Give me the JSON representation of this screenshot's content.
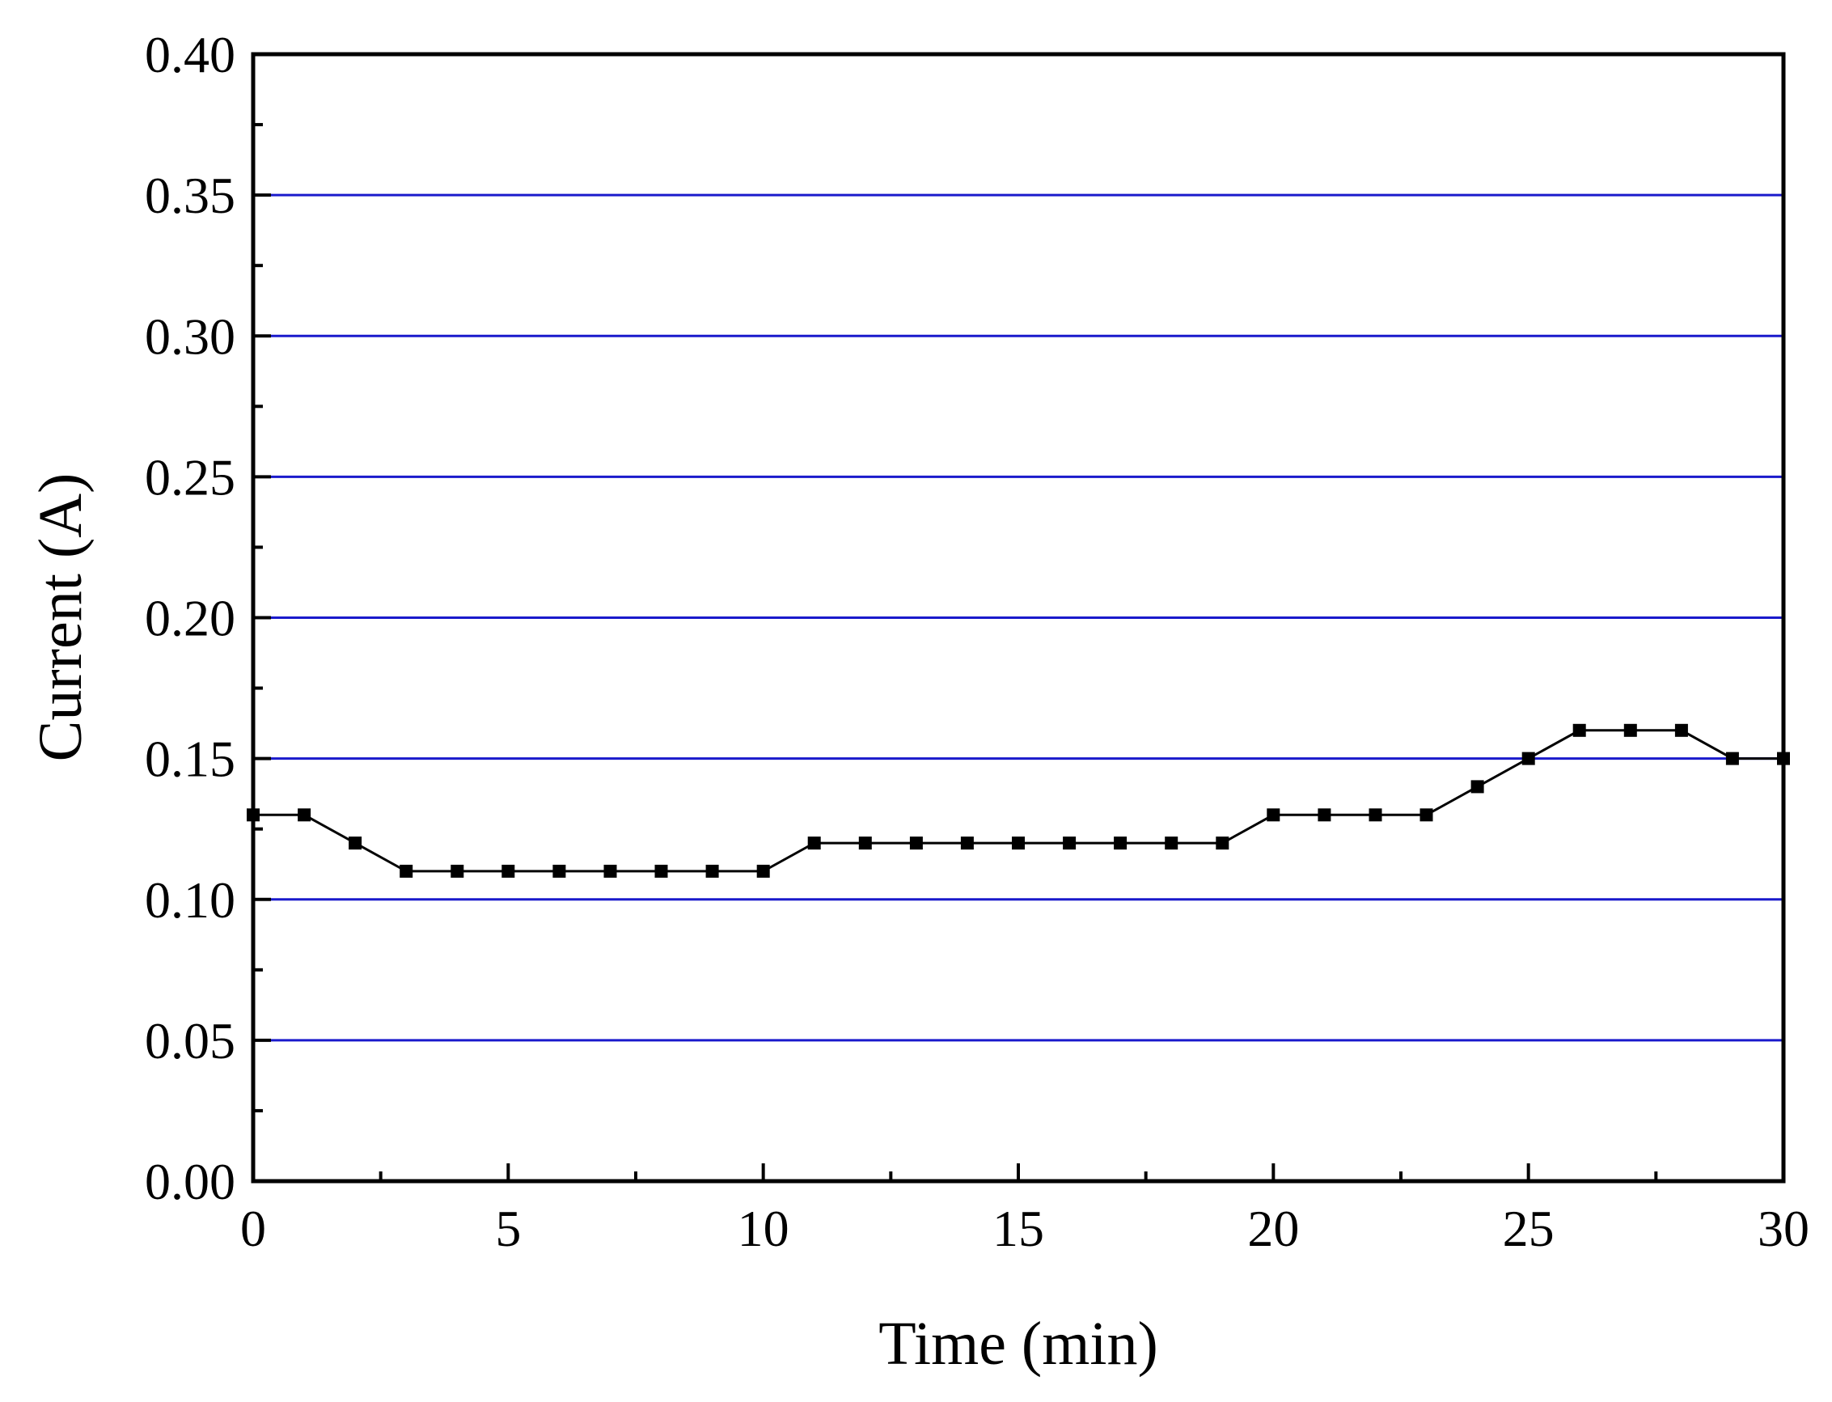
{
  "chart_data": {
    "type": "line",
    "title": "",
    "xlabel": "Time (min)",
    "ylabel": "Current (A)",
    "xlim": [
      0,
      30
    ],
    "ylim": [
      0.0,
      0.4
    ],
    "x_ticks": [
      0,
      5,
      10,
      15,
      20,
      25,
      30
    ],
    "x_tick_labels": [
      "0",
      "5",
      "10",
      "15",
      "20",
      "25",
      "30"
    ],
    "y_ticks": [
      0.0,
      0.05,
      0.1,
      0.15,
      0.2,
      0.25,
      0.3,
      0.35,
      0.4
    ],
    "y_tick_labels": [
      "0.00",
      "0.05",
      "0.10",
      "0.15",
      "0.20",
      "0.25",
      "0.30",
      "0.35",
      "0.40"
    ],
    "grid": "horizontal",
    "grid_color": "#1a1acc",
    "line_color": "#000000",
    "marker": "square",
    "legend": "none",
    "series": [
      {
        "x": [
          0,
          1,
          2,
          3,
          4,
          5,
          6,
          7,
          8,
          9,
          10,
          11,
          12,
          13,
          14,
          15,
          16,
          17,
          18,
          19,
          20,
          21,
          22,
          23,
          24,
          25,
          26,
          27,
          28,
          29,
          30
        ],
        "values": [
          0.13,
          0.13,
          0.12,
          0.11,
          0.11,
          0.11,
          0.11,
          0.11,
          0.11,
          0.11,
          0.11,
          0.12,
          0.12,
          0.12,
          0.12,
          0.12,
          0.12,
          0.12,
          0.12,
          0.12,
          0.13,
          0.13,
          0.13,
          0.13,
          0.14,
          0.15,
          0.16,
          0.16,
          0.16,
          0.15,
          0.15
        ]
      }
    ]
  }
}
